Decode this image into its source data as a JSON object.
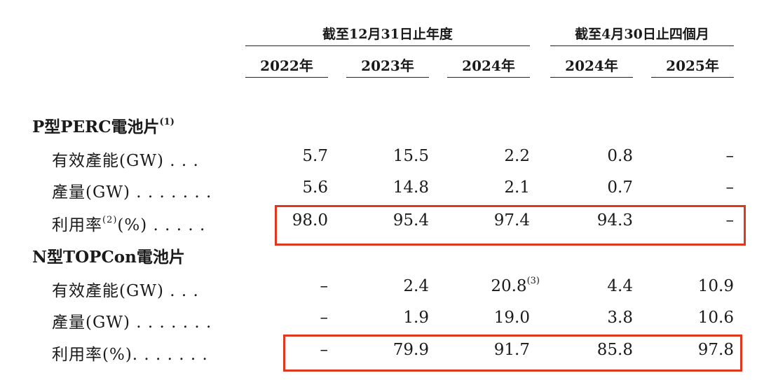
{
  "header": {
    "group1": "截至12月31日止年度",
    "group2": "截至4月30日止四個月",
    "years": [
      "2022年",
      "2023年",
      "2024年",
      "2024年",
      "2025年"
    ]
  },
  "sections": [
    {
      "title": "P型PERC電池片",
      "title_note": "(1)",
      "rows": [
        {
          "label": "有效產能(GW) . . .",
          "values": [
            "5.7",
            "15.5",
            "2.2",
            "0.8",
            "–"
          ]
        },
        {
          "label": "產量(GW) . . . . . . .",
          "values": [
            "5.6",
            "14.8",
            "2.1",
            "0.7",
            "–"
          ]
        },
        {
          "label_pre": "利用率",
          "label_note": "(2)",
          "label_post": "(%) . . . . .",
          "values": [
            "98.0",
            "95.4",
            "97.4",
            "94.3",
            "–"
          ]
        }
      ]
    },
    {
      "title": "N型TOPCon電池片",
      "rows": [
        {
          "label": "有效產能(GW) . . .",
          "values": [
            "–",
            "2.4",
            "20.8",
            "4.4",
            "10.9"
          ],
          "value_note": "(3)"
        },
        {
          "label": "產量(GW) . . . . . . .",
          "values": [
            "–",
            "1.9",
            "19.0",
            "3.8",
            "10.6"
          ]
        },
        {
          "label": "利用率(%). . . . . . .",
          "values": [
            "–",
            "79.9",
            "91.7",
            "85.8",
            "97.8"
          ]
        }
      ]
    }
  ],
  "highlight_color": "#e0381f"
}
